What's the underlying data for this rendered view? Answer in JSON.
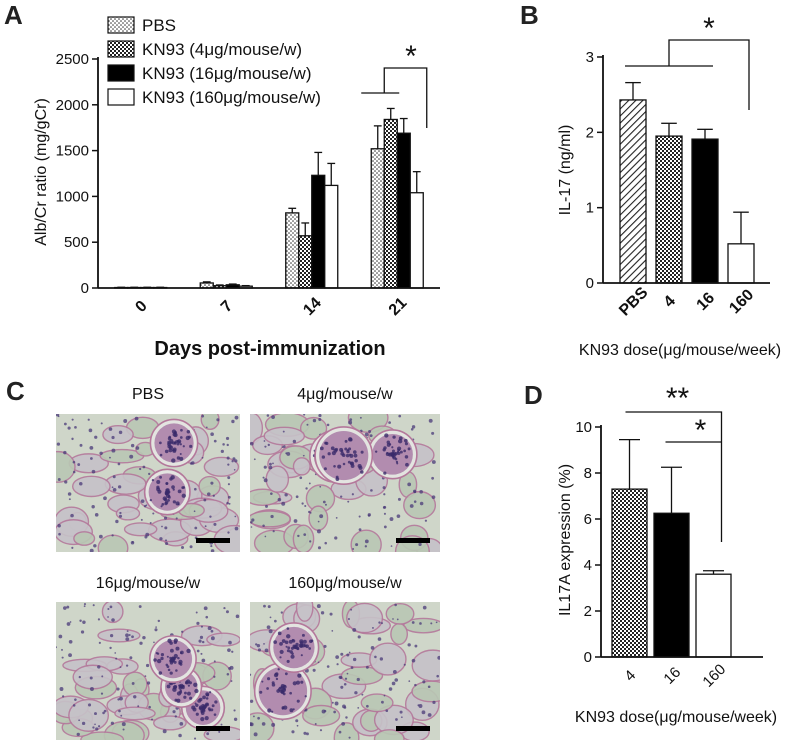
{
  "panels": {
    "a": {
      "label": "A"
    },
    "b": {
      "label": "B"
    },
    "c": {
      "label": "C"
    },
    "d": {
      "label": "D"
    }
  },
  "colors": {
    "ink": "#111111",
    "tissue_bg": "#cfd6c9",
    "tissue_pink": "#b4789b",
    "tissue_nuclei": "#4a3a78"
  },
  "chart_data": [
    {
      "id": "A",
      "type": "bar",
      "title": "",
      "xlabel": "Days post-immunization",
      "ylabel": "Alb/Cr ratio (mg/gCr)",
      "categories": [
        "0",
        "7",
        "14",
        "21"
      ],
      "ylim": [
        0,
        2500
      ],
      "yticks": [
        0,
        500,
        1000,
        1500,
        2000,
        2500
      ],
      "legend_position": "top-left",
      "series": [
        {
          "name": "PBS",
          "pattern": "dots",
          "values": [
            5,
            55,
            820,
            1520
          ],
          "errors": [
            3,
            12,
            50,
            250
          ]
        },
        {
          "name": "KN93 (4μg/mouse/w)",
          "pattern": "checker",
          "values": [
            5,
            25,
            570,
            1840
          ],
          "errors": [
            3,
            8,
            140,
            120
          ]
        },
        {
          "name": "KN93 (16μg/mouse/w)",
          "pattern": "black",
          "values": [
            5,
            35,
            1230,
            1690
          ],
          "errors": [
            3,
            8,
            250,
            160
          ]
        },
        {
          "name": "KN93 (160μg/mouse/w)",
          "pattern": "white",
          "values": [
            5,
            20,
            1120,
            1040
          ],
          "errors": [
            3,
            6,
            240,
            230
          ]
        }
      ],
      "annotations": [
        "*"
      ]
    },
    {
      "id": "B",
      "type": "bar",
      "title": "",
      "xlabel": "KN93 dose(μg/mouse/week)",
      "ylabel": "IL-17 (ng/ml)",
      "categories": [
        "PBS",
        "4",
        "16",
        "160"
      ],
      "ylim": [
        0,
        3
      ],
      "yticks": [
        0,
        1,
        2,
        3
      ],
      "values": [
        2.43,
        1.95,
        1.91,
        0.52
      ],
      "errors": [
        0.23,
        0.17,
        0.13,
        0.42
      ],
      "patterns": [
        "hatch",
        "checker",
        "black",
        "white"
      ],
      "annotations": [
        "*"
      ]
    },
    {
      "id": "D",
      "type": "bar",
      "title": "",
      "xlabel": "KN93 dose(μg/mouse/week)",
      "ylabel": "IL17A expression (%)",
      "categories": [
        "4",
        "16",
        "160"
      ],
      "ylim": [
        0,
        10
      ],
      "yticks": [
        0,
        2,
        4,
        6,
        8,
        10
      ],
      "values": [
        7.3,
        6.25,
        3.6
      ],
      "errors": [
        2.15,
        2.0,
        0.15
      ],
      "patterns": [
        "checker",
        "black",
        "white"
      ],
      "annotations": [
        "**",
        "*"
      ]
    }
  ],
  "micrographs": [
    {
      "title": "PBS",
      "seed": 11
    },
    {
      "title": "4μg/mouse/w",
      "seed": 23
    },
    {
      "title": "16μg/mouse/w",
      "seed": 37
    },
    {
      "title": "160μg/mouse/w",
      "seed": 51
    }
  ]
}
